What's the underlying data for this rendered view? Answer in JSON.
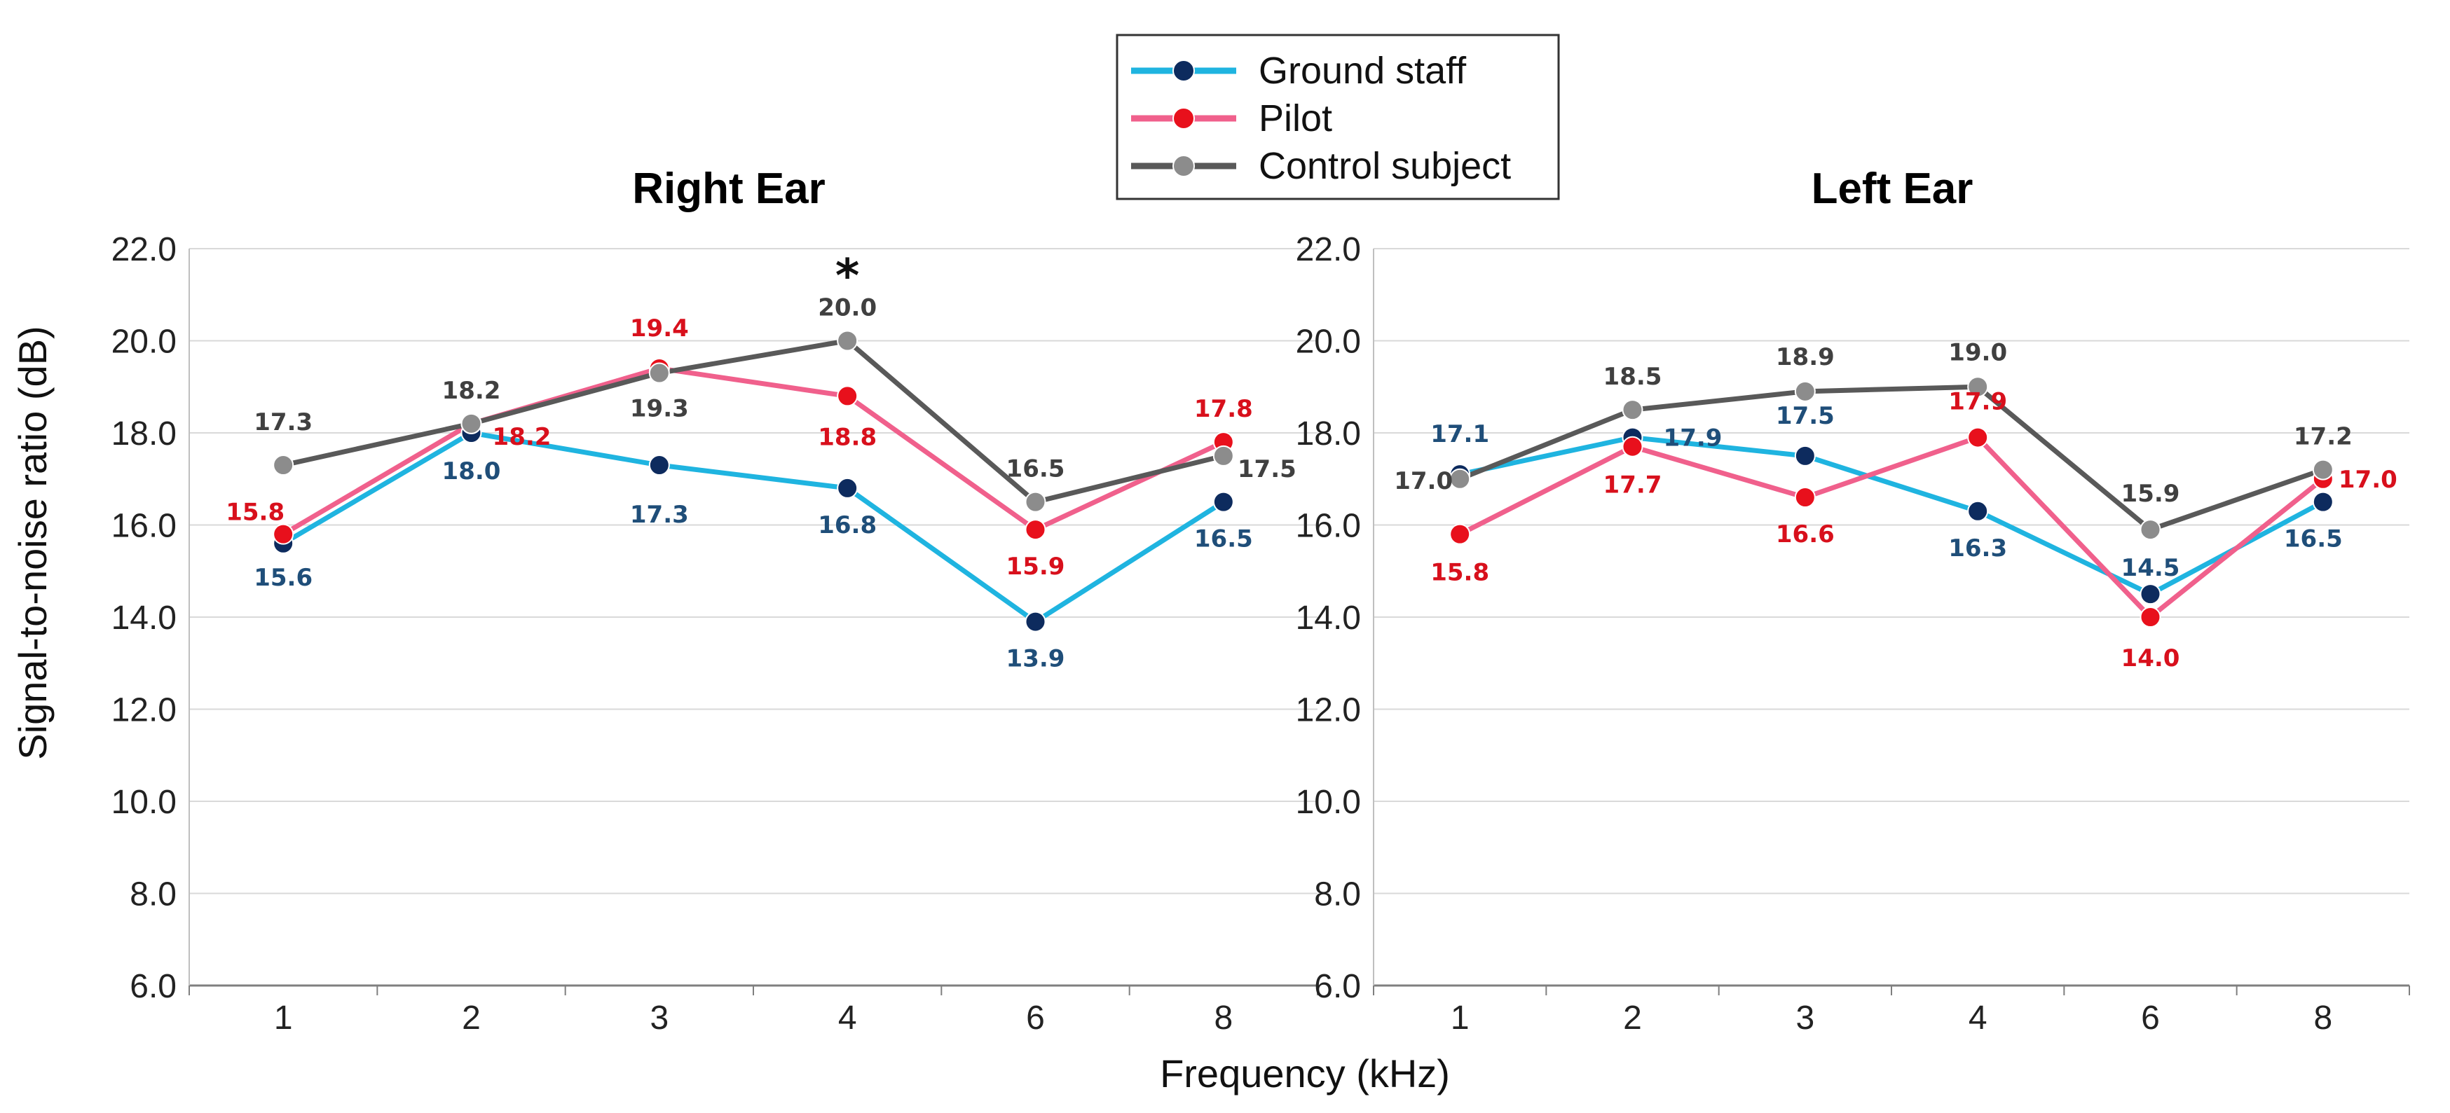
{
  "chart_data": {
    "type": "line",
    "xlabel": "Frequency (kHz)",
    "ylabel": "Signal-to-noise ratio  (dB)",
    "ylim": [
      6.0,
      22.0
    ],
    "yticks": [
      "6.0",
      "8.0",
      "10.0",
      "12.0",
      "14.0",
      "16.0",
      "18.0",
      "20.0",
      "22.0"
    ],
    "categories": [
      "1",
      "2",
      "3",
      "4",
      "6",
      "8"
    ],
    "legend": {
      "placement": "top-center",
      "entries": [
        {
          "name": "Ground staff",
          "color": "#1fb4e0",
          "marker": "#0d2b5e"
        },
        {
          "name": "Pilot",
          "color": "#f0608c",
          "marker": "#e8101c"
        },
        {
          "name": "Control subject",
          "color": "#595959",
          "marker": "#8c8c8c"
        }
      ]
    },
    "label_colors": {
      "Ground staff": "#1f4e79",
      "Pilot": "#d8101c",
      "Control subject": "#404040"
    },
    "panels": [
      {
        "title": "Right Ear",
        "annotation": "*",
        "annotation_category": "4",
        "series": [
          {
            "name": "Ground staff",
            "values": [
              15.6,
              18.0,
              17.3,
              16.8,
              13.9,
              16.5
            ],
            "labels": [
              "15.6",
              "18.0",
              "17.3",
              "16.8",
              "13.9",
              "16.5"
            ]
          },
          {
            "name": "Pilot",
            "values": [
              15.8,
              18.2,
              19.4,
              18.8,
              15.9,
              17.8
            ],
            "labels": [
              "15.8",
              "18.2",
              "19.4",
              "18.8",
              "15.9",
              "17.8"
            ]
          },
          {
            "name": "Control subject",
            "values": [
              17.3,
              18.2,
              19.3,
              20.0,
              16.5,
              17.5
            ],
            "labels": [
              "17.3",
              "18.2",
              "19.3",
              "20.0",
              "16.5",
              "17.5"
            ]
          }
        ]
      },
      {
        "title": "Left Ear",
        "annotation": "",
        "annotation_category": "",
        "series": [
          {
            "name": "Ground staff",
            "values": [
              17.1,
              17.9,
              17.5,
              16.3,
              14.5,
              16.5
            ],
            "labels": [
              "17.1",
              "17.9",
              "17.5",
              "16.3",
              "14.5",
              "16.5"
            ]
          },
          {
            "name": "Pilot",
            "values": [
              15.8,
              17.7,
              16.6,
              17.9,
              14.0,
              17.0
            ],
            "labels": [
              "15.8",
              "17.7",
              "16.6",
              "17.9",
              "14.0",
              "17.0"
            ]
          },
          {
            "name": "Control subject",
            "values": [
              17.0,
              18.5,
              18.9,
              19.0,
              15.9,
              17.2
            ],
            "labels": [
              "17.0",
              "18.5",
              "18.9",
              "19.0",
              "15.9",
              "17.2"
            ]
          }
        ]
      }
    ]
  }
}
